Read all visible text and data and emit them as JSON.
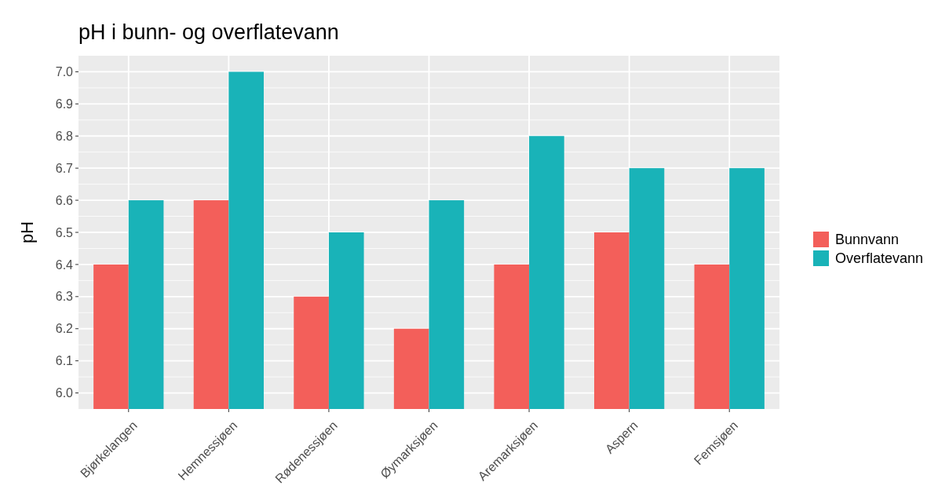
{
  "chart_data": {
    "type": "bar",
    "title": "pH i bunn- og overflatevann",
    "ylabel": "pH",
    "categories": [
      "Bjørkelangen",
      "Hemnessjøen",
      "Rødenessjøen",
      "Øymarksjøen",
      "Aremarksjøen",
      "Aspern",
      "Femsjøen"
    ],
    "series": [
      {
        "name": "Bunnvann",
        "color": "#f35f5a",
        "values": [
          6.4,
          6.6,
          6.3,
          6.2,
          6.4,
          6.5,
          6.4
        ]
      },
      {
        "name": "Overflatevann",
        "color": "#19b3b8",
        "values": [
          6.6,
          7.0,
          6.5,
          6.6,
          6.8,
          6.7,
          6.7
        ]
      }
    ],
    "ylim": [
      5.95,
      7.05
    ],
    "yticks": [
      {
        "value": 6,
        "label": "6.0"
      },
      6.1,
      6.2,
      6.3,
      6.4,
      6.5,
      6.6,
      6.7,
      6.8,
      6.9,
      {
        "value": 7,
        "label": "7.0"
      }
    ],
    "grid": true,
    "legend": "right"
  }
}
